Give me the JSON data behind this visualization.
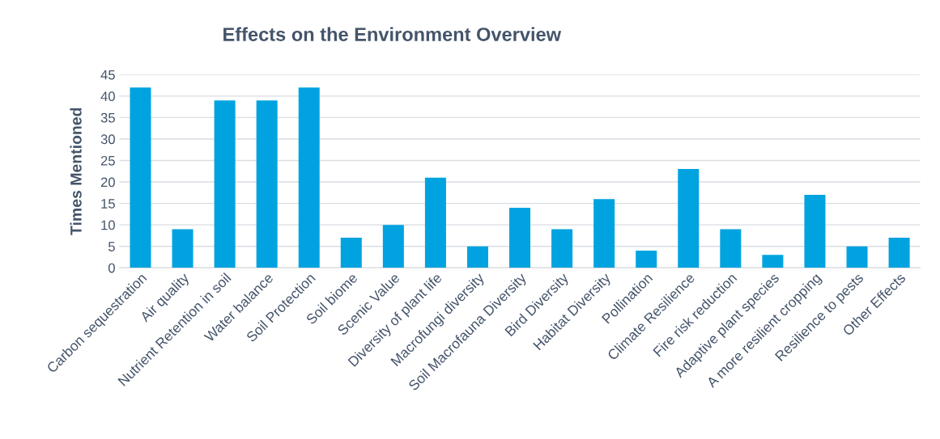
{
  "chart_data": {
    "type": "bar",
    "title": "Effects on the Environment Overview",
    "ylabel": "Times Mentioned",
    "categories": [
      "Carbon sequestration",
      "Air quality",
      "Nutrient Retention in soil",
      "Water balance",
      "Soil Protection",
      "Soil biome",
      "Scenic Value",
      "Diversity of plant life",
      "Macrofungi diversity",
      "Soil Macrofauna Diversity",
      "Bird Diversity",
      "Habitat Diversity",
      "Pollination",
      "Climate Resilience",
      "Fire risk reduction",
      "Adaptive plant species",
      "A more resilient cropping",
      "Resilience to pests",
      "Other Effects"
    ],
    "values": [
      42,
      9,
      39,
      39,
      42,
      7,
      10,
      21,
      5,
      14,
      9,
      16,
      4,
      23,
      9,
      3,
      17,
      5,
      7
    ],
    "color": "#00a3e0",
    "ylim": [
      0,
      45
    ],
    "yticks": [
      0,
      5,
      10,
      15,
      20,
      25,
      30,
      35,
      40,
      45
    ],
    "grid": "y",
    "legend": false
  }
}
